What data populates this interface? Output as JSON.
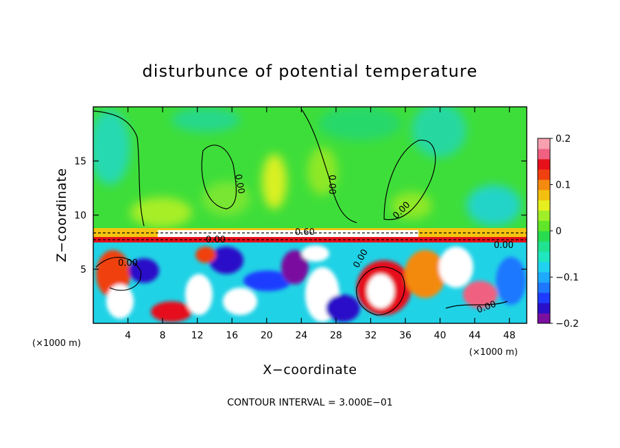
{
  "chart_data": {
    "type": "heatmap",
    "title": "disturbunce of potential temperature",
    "xlabel": "X−coordinate",
    "ylabel": "Z−coordinate",
    "x_unit_left": "(×1000 m)",
    "x_unit_right": "(×1000 m)",
    "xlim": [
      0,
      50
    ],
    "ylim": [
      0,
      20
    ],
    "x_ticks": [
      4,
      8,
      12,
      16,
      20,
      24,
      28,
      32,
      36,
      40,
      44,
      48
    ],
    "x_tick_labels": [
      "4",
      "8",
      "12",
      "16",
      "20",
      "24",
      "28",
      "32",
      "36",
      "40",
      "44",
      "48"
    ],
    "y_ticks": [
      5,
      10,
      15
    ],
    "y_tick_labels": [
      "5",
      "10",
      "15"
    ],
    "colorbar": {
      "range": [
        -0.2,
        0.2
      ],
      "ticks": [
        0.2,
        0.1,
        0,
        -0.1,
        -0.2
      ],
      "tick_labels": [
        "0.2",
        "0.1",
        "0",
        "−0.1",
        "−0.2"
      ],
      "colors": [
        "#7a0fa0",
        "#2a10c8",
        "#1e3cff",
        "#1e78ff",
        "#1eaaff",
        "#20d2f0",
        "#20e6c0",
        "#20e290",
        "#28dc50",
        "#60e628",
        "#a0ee28",
        "#e6f020",
        "#f4c010",
        "#f48a10",
        "#f04010",
        "#e6101a",
        "#f06080",
        "#f8a0b0"
      ]
    },
    "contour_labels": [
      "0.00",
      "0.00",
      "0.00",
      "0.60",
      "0.00",
      "0.00",
      "0.00",
      "0.00",
      "0.00",
      "0.00"
    ],
    "note": "CONTOUR INTERVAL = 3.000E−01"
  }
}
